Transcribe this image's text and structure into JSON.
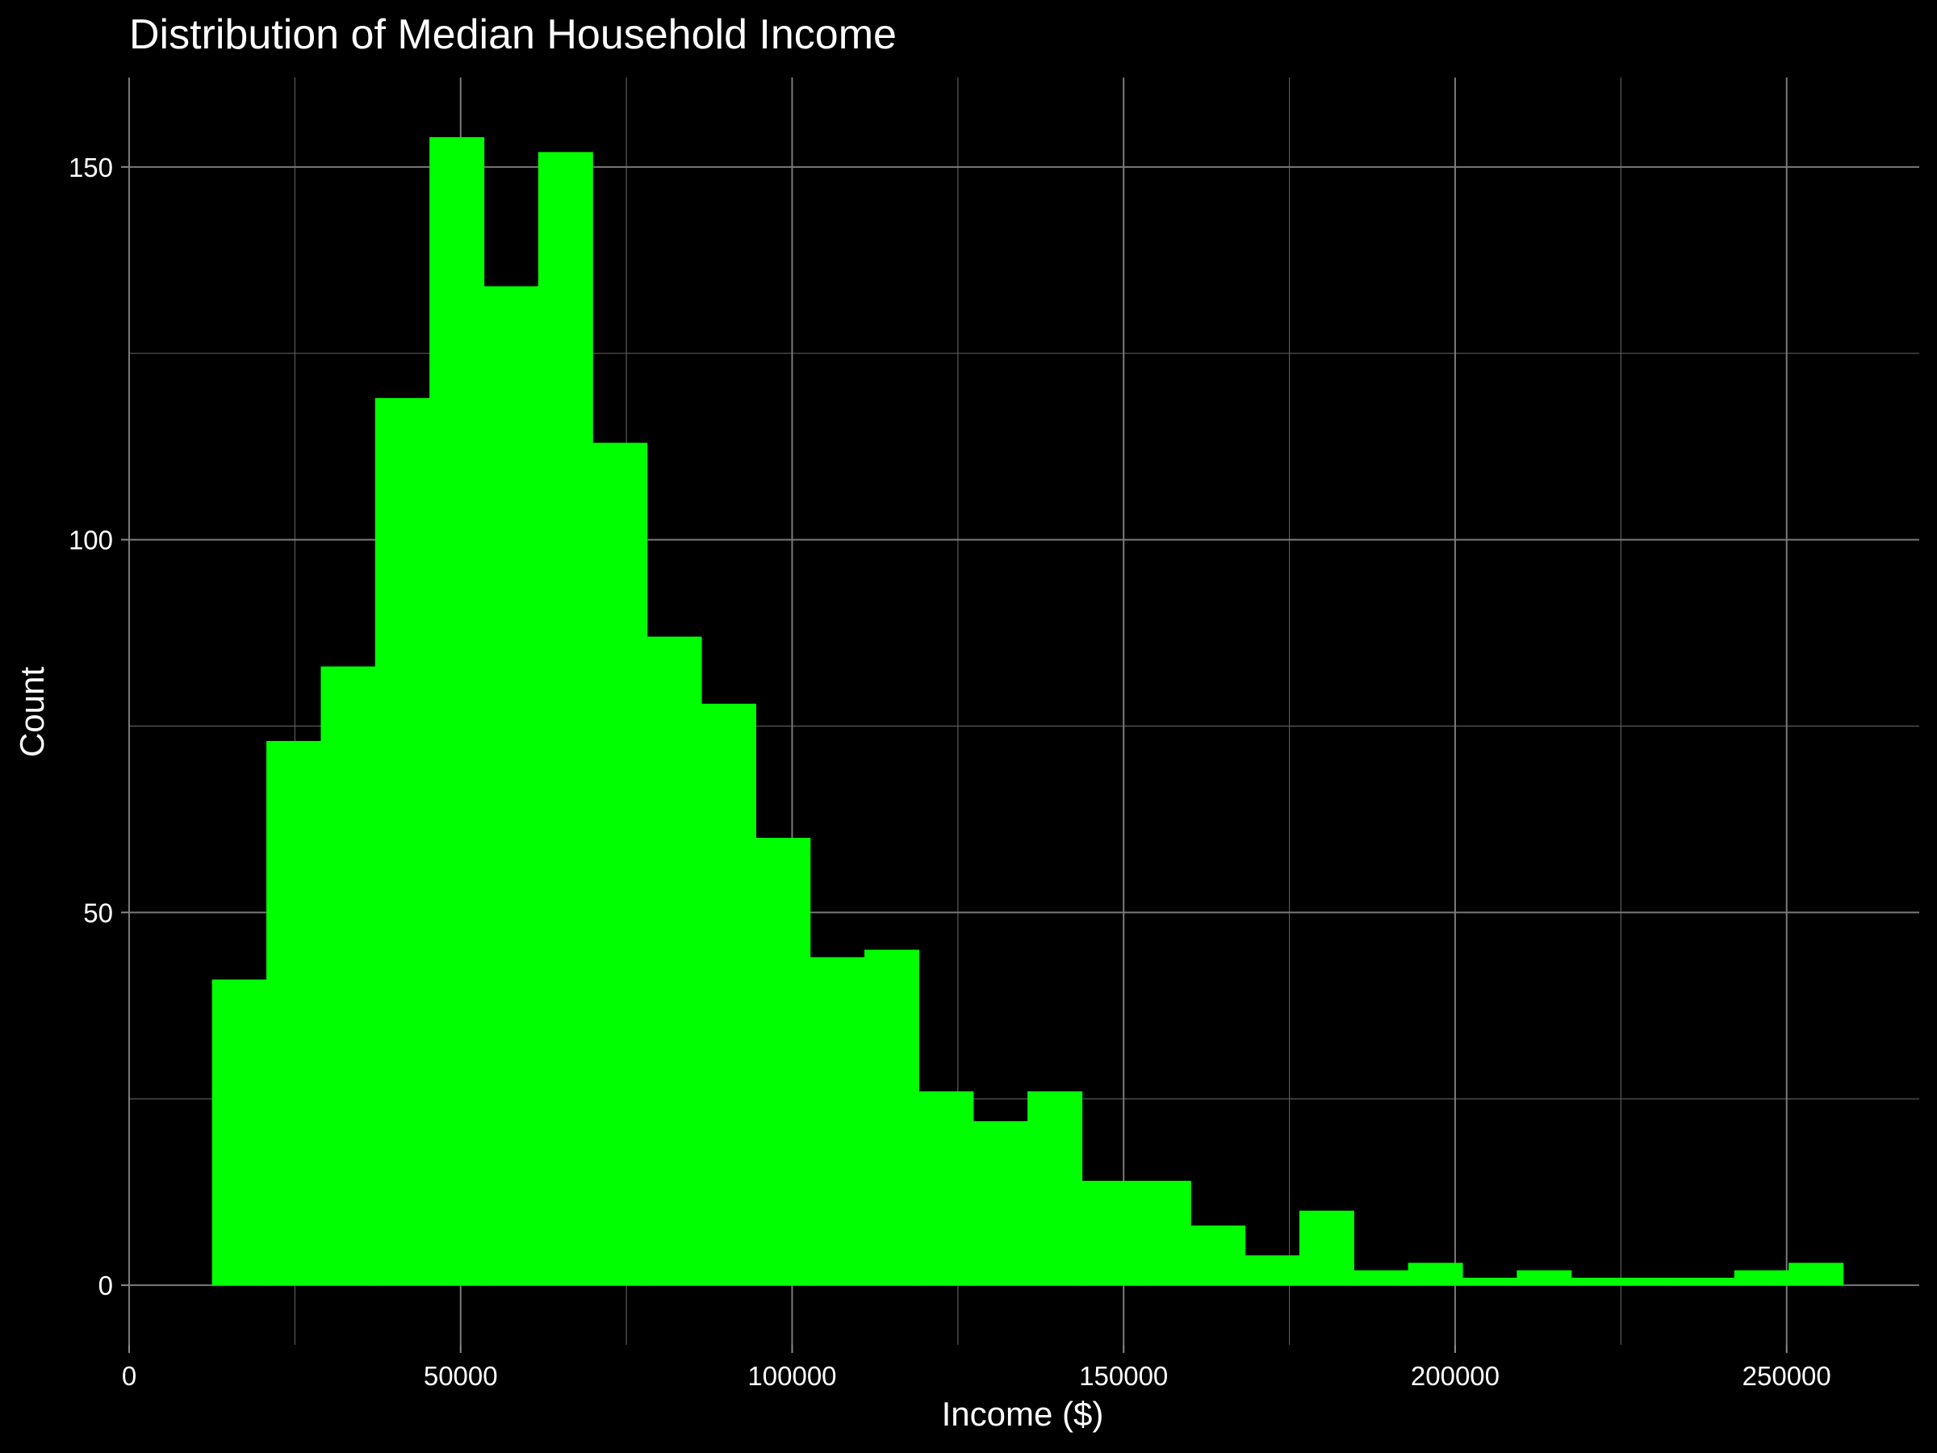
{
  "chart_data": {
    "type": "bar",
    "title": "Distribution of Median Household Income",
    "xlabel": "Income ($)",
    "ylabel": "Count",
    "bar_color": "#00ff00",
    "background_color": "#000000",
    "grid": true,
    "xlim": [
      0,
      270000
    ],
    "ylim": [
      -8,
      162
    ],
    "x_ticks": [
      0,
      50000,
      100000,
      150000,
      200000,
      250000
    ],
    "x_tick_labels": [
      "0",
      "50000",
      "100000",
      "150000",
      "200000",
      "250000"
    ],
    "y_ticks": [
      0,
      50,
      100,
      150
    ],
    "y_tick_labels": [
      "0",
      "50",
      "100",
      "150"
    ],
    "bins": [
      {
        "x0": 12500,
        "x1": 20700,
        "count": 41
      },
      {
        "x0": 20700,
        "x1": 28900,
        "count": 73
      },
      {
        "x0": 28900,
        "x1": 37100,
        "count": 83
      },
      {
        "x0": 37100,
        "x1": 45300,
        "count": 119
      },
      {
        "x0": 45300,
        "x1": 53500,
        "count": 154
      },
      {
        "x0": 53500,
        "x1": 61700,
        "count": 134
      },
      {
        "x0": 61700,
        "x1": 69900,
        "count": 152
      },
      {
        "x0": 69900,
        "x1": 78100,
        "count": 113
      },
      {
        "x0": 78100,
        "x1": 86300,
        "count": 87
      },
      {
        "x0": 86300,
        "x1": 94500,
        "count": 78
      },
      {
        "x0": 94500,
        "x1": 102700,
        "count": 60
      },
      {
        "x0": 102700,
        "x1": 110900,
        "count": 44
      },
      {
        "x0": 110900,
        "x1": 119100,
        "count": 45
      },
      {
        "x0": 119100,
        "x1": 127300,
        "count": 26
      },
      {
        "x0": 127300,
        "x1": 135500,
        "count": 22
      },
      {
        "x0": 135500,
        "x1": 143700,
        "count": 26
      },
      {
        "x0": 143700,
        "x1": 151900,
        "count": 14
      },
      {
        "x0": 151900,
        "x1": 160100,
        "count": 14
      },
      {
        "x0": 160100,
        "x1": 168300,
        "count": 8
      },
      {
        "x0": 168300,
        "x1": 176500,
        "count": 4
      },
      {
        "x0": 176500,
        "x1": 184700,
        "count": 10
      },
      {
        "x0": 184700,
        "x1": 192900,
        "count": 2
      },
      {
        "x0": 192900,
        "x1": 201100,
        "count": 3
      },
      {
        "x0": 201100,
        "x1": 209300,
        "count": 1
      },
      {
        "x0": 209300,
        "x1": 217500,
        "count": 2
      },
      {
        "x0": 217500,
        "x1": 225700,
        "count": 1
      },
      {
        "x0": 225700,
        "x1": 233900,
        "count": 1
      },
      {
        "x0": 233900,
        "x1": 242100,
        "count": 1
      },
      {
        "x0": 242100,
        "x1": 250300,
        "count": 2
      },
      {
        "x0": 250300,
        "x1": 258500,
        "count": 3
      }
    ]
  }
}
